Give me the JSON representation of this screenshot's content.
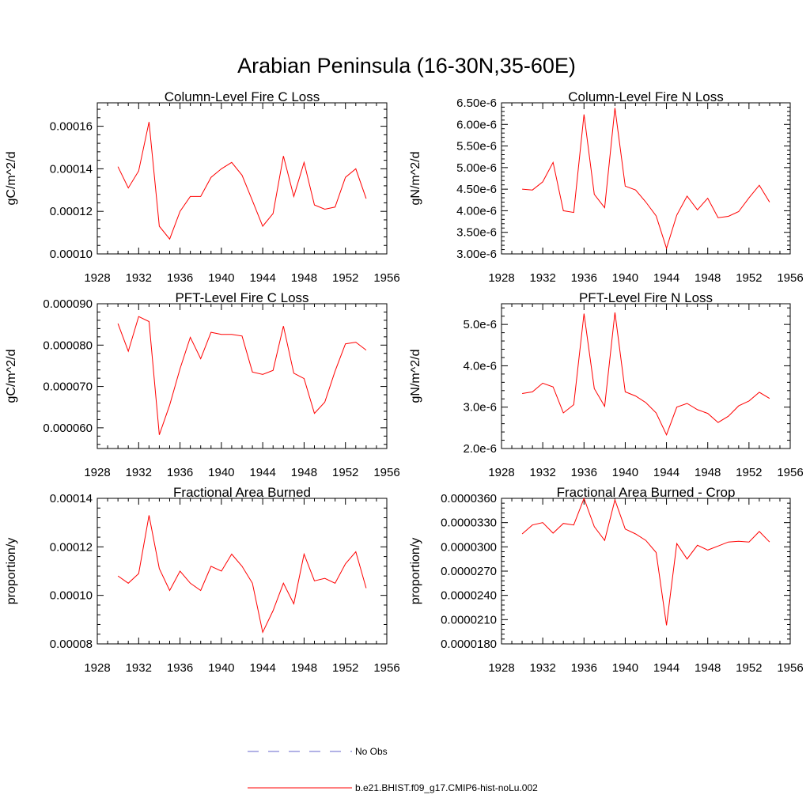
{
  "figure_title": "Arabian Peninsula (16-30N,35-60E)",
  "legend": {
    "items": [
      {
        "label": "No Obs",
        "color": "#6666cc",
        "dash": true
      },
      {
        "label": "b.e21.BHIST.f09_g17.CMIP6-hist-noLu.002",
        "color": "#ff0000",
        "dash": false
      }
    ]
  },
  "chart_data": [
    {
      "type": "line",
      "title": "Column-Level Fire C Loss",
      "ylabel": "gC/m^2/d",
      "xlim": [
        1928,
        1956
      ],
      "ylim": [
        0.0001,
        0.000171
      ],
      "xticks": [
        "1928",
        "1932",
        "1936",
        "1940",
        "1944",
        "1948",
        "1952",
        "1956"
      ],
      "yticks": [
        {
          "value": 0.0001,
          "label": "0.00010"
        },
        {
          "value": 0.00012,
          "label": "0.00012"
        },
        {
          "value": 0.00014,
          "label": "0.00014"
        },
        {
          "value": 0.00016,
          "label": "0.00016"
        }
      ],
      "series": [
        {
          "color": "#ff0000",
          "x": [
            1930,
            1931,
            1932,
            1933,
            1934,
            1935,
            1936,
            1937,
            1938,
            1939,
            1940,
            1941,
            1942,
            1943,
            1944,
            1945,
            1946,
            1947,
            1948,
            1949,
            1950,
            1951,
            1952,
            1953,
            1954
          ],
          "values": [
            0.000141,
            0.000131,
            0.000139,
            0.000162,
            0.000113,
            0.000107,
            0.00012,
            0.000127,
            0.000127,
            0.000136,
            0.00014,
            0.000143,
            0.000137,
            0.000125,
            0.000113,
            0.000119,
            0.000146,
            0.000127,
            0.000143,
            0.000123,
            0.000121,
            0.000122,
            0.000136,
            0.00014,
            0.000126
          ]
        }
      ]
    },
    {
      "type": "line",
      "title": "Column-Level Fire N Loss",
      "ylabel": "gN/m^2/d",
      "xlim": [
        1928,
        1956
      ],
      "ylim": [
        3e-06,
        6.5e-06
      ],
      "xticks": [
        "1928",
        "1932",
        "1936",
        "1940",
        "1944",
        "1948",
        "1952",
        "1956"
      ],
      "yticks": [
        {
          "value": 3e-06,
          "label": "3.00e-6"
        },
        {
          "value": 3.5e-06,
          "label": "3.50e-6"
        },
        {
          "value": 4e-06,
          "label": "4.00e-6"
        },
        {
          "value": 4.5e-06,
          "label": "4.50e-6"
        },
        {
          "value": 5e-06,
          "label": "5.00e-6"
        },
        {
          "value": 5.5e-06,
          "label": "5.50e-6"
        },
        {
          "value": 6e-06,
          "label": "6.00e-6"
        },
        {
          "value": 6.5e-06,
          "label": "6.50e-6"
        }
      ],
      "series": [
        {
          "color": "#ff0000",
          "x": [
            1930,
            1931,
            1932,
            1933,
            1934,
            1935,
            1936,
            1937,
            1938,
            1939,
            1940,
            1941,
            1942,
            1943,
            1944,
            1945,
            1946,
            1947,
            1948,
            1949,
            1950,
            1951,
            1952,
            1953,
            1954
          ],
          "values": [
            4.5e-06,
            4.48e-06,
            4.67e-06,
            5.12e-06,
            4e-06,
            3.96e-06,
            6.23e-06,
            4.38e-06,
            4.07e-06,
            6.38e-06,
            4.57e-06,
            4.48e-06,
            4.2e-06,
            3.88e-06,
            3.13e-06,
            3.9e-06,
            4.34e-06,
            4.02e-06,
            4.29e-06,
            3.84e-06,
            3.87e-06,
            3.98e-06,
            4.3e-06,
            4.59e-06,
            4.2e-06
          ]
        }
      ]
    },
    {
      "type": "line",
      "title": "PFT-Level Fire C Loss",
      "ylabel": "gC/m^2/d",
      "xlim": [
        1928,
        1956
      ],
      "ylim": [
        5.5e-05,
        9e-05
      ],
      "xticks": [
        "1928",
        "1932",
        "1936",
        "1940",
        "1944",
        "1948",
        "1952",
        "1956"
      ],
      "yticks": [
        {
          "value": 6e-05,
          "label": "0.000060"
        },
        {
          "value": 7e-05,
          "label": "0.000070"
        },
        {
          "value": 8e-05,
          "label": "0.000080"
        },
        {
          "value": 9e-05,
          "label": "0.000090"
        }
      ],
      "series": [
        {
          "color": "#ff0000",
          "x": [
            1930,
            1931,
            1932,
            1933,
            1934,
            1935,
            1936,
            1937,
            1938,
            1939,
            1940,
            1941,
            1942,
            1943,
            1944,
            1945,
            1946,
            1947,
            1948,
            1949,
            1950,
            1951,
            1952,
            1953,
            1954
          ],
          "values": [
            8.52e-05,
            7.85e-05,
            8.69e-05,
            8.57e-05,
            5.83e-05,
            6.55e-05,
            7.43e-05,
            8.19e-05,
            7.67e-05,
            8.31e-05,
            8.26e-05,
            8.26e-05,
            8.22e-05,
            7.35e-05,
            7.29e-05,
            7.39e-05,
            8.46e-05,
            7.32e-05,
            7.19e-05,
            6.35e-05,
            6.62e-05,
            7.37e-05,
            8.03e-05,
            8.07e-05,
            7.88e-05
          ]
        }
      ]
    },
    {
      "type": "line",
      "title": "PFT-Level Fire N Loss",
      "ylabel": "gN/m^2/d",
      "xlim": [
        1928,
        1956
      ],
      "ylim": [
        2e-06,
        5.5e-06
      ],
      "xticks": [
        "1928",
        "1932",
        "1936",
        "1940",
        "1944",
        "1948",
        "1952",
        "1956"
      ],
      "yticks": [
        {
          "value": 2e-06,
          "label": "2.0e-6"
        },
        {
          "value": 3e-06,
          "label": "3.0e-6"
        },
        {
          "value": 4e-06,
          "label": "4.0e-6"
        },
        {
          "value": 5e-06,
          "label": "5.0e-6"
        }
      ],
      "series": [
        {
          "color": "#ff0000",
          "x": [
            1930,
            1931,
            1932,
            1933,
            1934,
            1935,
            1936,
            1937,
            1938,
            1939,
            1940,
            1941,
            1942,
            1943,
            1944,
            1945,
            1946,
            1947,
            1948,
            1949,
            1950,
            1951,
            1952,
            1953,
            1954
          ],
          "values": [
            3.33e-06,
            3.37e-06,
            3.58e-06,
            3.49e-06,
            2.86e-06,
            3.06e-06,
            5.26e-06,
            3.45e-06,
            3.02e-06,
            5.29e-06,
            3.37e-06,
            3.27e-06,
            3.11e-06,
            2.86e-06,
            2.33e-06,
            3e-06,
            3.09e-06,
            2.94e-06,
            2.85e-06,
            2.63e-06,
            2.78e-06,
            3.03e-06,
            3.15e-06,
            3.36e-06,
            3.21e-06
          ]
        }
      ]
    },
    {
      "type": "line",
      "title": "Fractional Area Burned",
      "ylabel": "proportion/y",
      "xlim": [
        1928,
        1956
      ],
      "ylim": [
        8e-05,
        0.00014
      ],
      "xticks": [
        "1928",
        "1932",
        "1936",
        "1940",
        "1944",
        "1948",
        "1952",
        "1956"
      ],
      "yticks": [
        {
          "value": 8e-05,
          "label": "0.00008"
        },
        {
          "value": 0.0001,
          "label": "0.00010"
        },
        {
          "value": 0.00012,
          "label": "0.00012"
        },
        {
          "value": 0.00014,
          "label": "0.00014"
        }
      ],
      "series": [
        {
          "color": "#ff0000",
          "x": [
            1930,
            1931,
            1932,
            1933,
            1934,
            1935,
            1936,
            1937,
            1938,
            1939,
            1940,
            1941,
            1942,
            1943,
            1944,
            1945,
            1946,
            1947,
            1948,
            1949,
            1950,
            1951,
            1952,
            1953,
            1954
          ],
          "values": [
            0.000108,
            0.000105,
            0.000109,
            0.000133,
            0.000111,
            0.000102,
            0.00011,
            0.000105,
            0.000102,
            0.000112,
            0.00011,
            0.000117,
            0.000112,
            0.000105,
            8.48e-05,
            9.37e-05,
            0.000105,
            9.65e-05,
            0.000117,
            0.000106,
            0.000107,
            0.000105,
            0.000113,
            0.000118,
            0.000103
          ]
        }
      ]
    },
    {
      "type": "line",
      "title": "Fractional Area Burned - Crop",
      "ylabel": "proportion/y",
      "xlim": [
        1928,
        1956
      ],
      "ylim": [
        1.8e-05,
        3.6e-05
      ],
      "xticks": [
        "1928",
        "1932",
        "1936",
        "1940",
        "1944",
        "1948",
        "1952",
        "1956"
      ],
      "yticks": [
        {
          "value": 1.8e-05,
          "label": "0.0000180"
        },
        {
          "value": 2.1e-05,
          "label": "0.0000210"
        },
        {
          "value": 2.4e-05,
          "label": "0.0000240"
        },
        {
          "value": 2.7e-05,
          "label": "0.0000270"
        },
        {
          "value": 3e-05,
          "label": "0.0000300"
        },
        {
          "value": 3.3e-05,
          "label": "0.0000330"
        },
        {
          "value": 3.6e-05,
          "label": "0.0000360"
        }
      ],
      "series": [
        {
          "color": "#ff0000",
          "x": [
            1930,
            1931,
            1932,
            1933,
            1934,
            1935,
            1936,
            1937,
            1938,
            1939,
            1940,
            1941,
            1942,
            1943,
            1944,
            1945,
            1946,
            1947,
            1948,
            1949,
            1950,
            1951,
            1952,
            1953,
            1954
          ],
          "values": [
            3.16e-05,
            3.27e-05,
            3.3e-05,
            3.17e-05,
            3.29e-05,
            3.27e-05,
            3.6e-05,
            3.25e-05,
            3.08e-05,
            3.58e-05,
            3.22e-05,
            3.16e-05,
            3.08e-05,
            2.93e-05,
            2.03e-05,
            3.04e-05,
            2.85e-05,
            3.02e-05,
            2.96e-05,
            3.01e-05,
            3.06e-05,
            3.07e-05,
            3.06e-05,
            3.19e-05,
            3.06e-05
          ]
        }
      ]
    }
  ]
}
